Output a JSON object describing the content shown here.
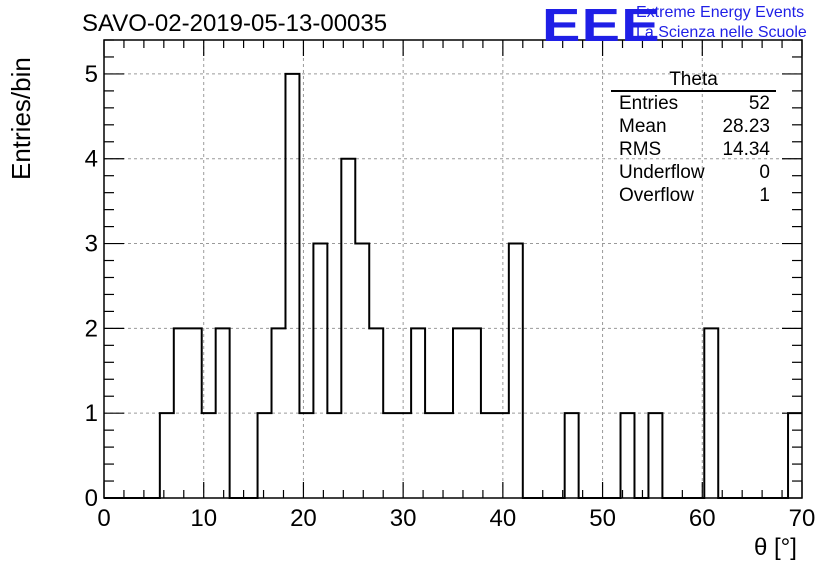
{
  "header": {
    "title": "SAVO-02-2019-05-13-00035",
    "logo_text": "EEE",
    "logo_line1": "Extreme Energy Events",
    "logo_line2": "La Scienza nelle Scuole",
    "logo_color": "#1f1fe6"
  },
  "stats_box": {
    "title": "Theta",
    "rows": [
      {
        "label": "Entries",
        "value": "52"
      },
      {
        "label": "Mean",
        "value": "28.23"
      },
      {
        "label": "RMS",
        "value": "14.34"
      },
      {
        "label": "Underflow",
        "value": "0"
      },
      {
        "label": "Overflow",
        "value": "1"
      }
    ]
  },
  "chart_data": {
    "type": "bar",
    "style": "step-histogram",
    "xlabel": "θ [°]",
    "ylabel": "Entries/bin",
    "xlim": [
      0,
      70
    ],
    "ylim": [
      0,
      5.4
    ],
    "bin_width": 1.4,
    "x_ticks": [
      "0",
      "10",
      "20",
      "30",
      "40",
      "50",
      "60",
      "70"
    ],
    "y_ticks": [
      "0",
      "1",
      "2",
      "3",
      "4",
      "5"
    ],
    "grid": true,
    "values": [
      0,
      0,
      0,
      0,
      1,
      2,
      2,
      1,
      2,
      0,
      0,
      1,
      2,
      5,
      1,
      3,
      1,
      4,
      3,
      2,
      1,
      1,
      2,
      1,
      1,
      2,
      2,
      1,
      1,
      3,
      0,
      0,
      0,
      1,
      0,
      0,
      0,
      1,
      0,
      1,
      0,
      0,
      0,
      2,
      0,
      0,
      0,
      0,
      0,
      1
    ]
  }
}
